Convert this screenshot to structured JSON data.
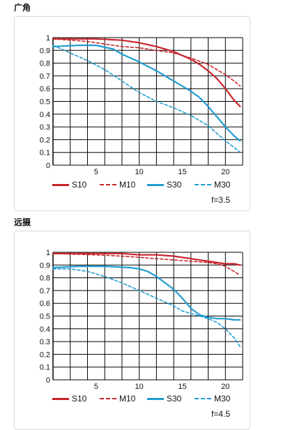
{
  "chart_data": [
    {
      "type": "line",
      "title": "广角",
      "annotation": "f=3.5",
      "xlim": [
        0,
        22
      ],
      "ylim": [
        0,
        1
      ],
      "x_ticks": [
        5,
        10,
        15,
        20
      ],
      "y_ticks": [
        0,
        0.1,
        0.2,
        0.3,
        0.4,
        0.5,
        0.6,
        0.7,
        0.8,
        0.9,
        1
      ],
      "y_tick_labels": [
        "0",
        "0.1",
        "0.2",
        "0.3",
        "0.4",
        "0.5",
        "0.6",
        "0.7",
        "0.8",
        "0.9",
        "1"
      ],
      "grid": true,
      "legend_position": "bottom",
      "series": [
        {
          "name": "S10",
          "color": "#c8242a",
          "dash": false,
          "x": [
            0,
            5,
            8,
            10,
            12,
            14,
            16,
            17,
            18,
            19,
            20,
            21,
            21.7
          ],
          "values": [
            0.99,
            0.99,
            0.98,
            0.96,
            0.93,
            0.89,
            0.83,
            0.79,
            0.74,
            0.68,
            0.6,
            0.51,
            0.46
          ]
        },
        {
          "name": "M10",
          "color": "#c8242a",
          "dash": true,
          "x": [
            0,
            4,
            8,
            10,
            12,
            14,
            16,
            18,
            19,
            20,
            21,
            21.7
          ],
          "values": [
            0.99,
            0.97,
            0.93,
            0.92,
            0.9,
            0.88,
            0.84,
            0.79,
            0.75,
            0.71,
            0.66,
            0.62
          ]
        },
        {
          "name": "S30",
          "color": "#1f9cd0",
          "dash": false,
          "x": [
            0,
            3,
            5,
            7,
            8,
            10,
            12,
            14,
            16,
            17,
            18,
            19,
            20,
            21,
            21.7
          ],
          "values": [
            0.93,
            0.94,
            0.94,
            0.91,
            0.87,
            0.81,
            0.74,
            0.66,
            0.58,
            0.53,
            0.46,
            0.38,
            0.3,
            0.23,
            0.19
          ]
        },
        {
          "name": "M30",
          "color": "#1f9cd0",
          "dash": true,
          "x": [
            0,
            2,
            4,
            6,
            8,
            10,
            12,
            14,
            16,
            18,
            19,
            20,
            21,
            21.7
          ],
          "values": [
            0.94,
            0.88,
            0.82,
            0.75,
            0.66,
            0.57,
            0.5,
            0.45,
            0.39,
            0.31,
            0.25,
            0.19,
            0.14,
            0.1
          ]
        }
      ]
    },
    {
      "type": "line",
      "title": "远摄",
      "annotation": "f=4.5",
      "xlim": [
        0,
        22
      ],
      "ylim": [
        0,
        1
      ],
      "x_ticks": [
        5,
        10,
        15,
        20
      ],
      "y_ticks": [
        0,
        0.1,
        0.2,
        0.3,
        0.4,
        0.5,
        0.6,
        0.7,
        0.8,
        0.9,
        1
      ],
      "y_tick_labels": [
        "0",
        "0.1",
        "0.2",
        "0.3",
        "0.4",
        "0.5",
        "0.6",
        "0.7",
        "0.8",
        "0.9",
        "1"
      ],
      "grid": true,
      "legend_position": "bottom",
      "series": [
        {
          "name": "S10",
          "color": "#c8242a",
          "dash": false,
          "x": [
            0,
            5,
            8,
            10,
            12,
            14,
            16,
            18,
            19,
            20,
            21,
            21.7
          ],
          "values": [
            0.99,
            0.99,
            0.99,
            0.98,
            0.98,
            0.97,
            0.95,
            0.93,
            0.92,
            0.91,
            0.91,
            0.9
          ]
        },
        {
          "name": "M10",
          "color": "#c8242a",
          "dash": true,
          "x": [
            0,
            5,
            8,
            10,
            12,
            14,
            16,
            18,
            19,
            20,
            21,
            21.7
          ],
          "values": [
            0.99,
            0.98,
            0.97,
            0.96,
            0.95,
            0.94,
            0.93,
            0.92,
            0.91,
            0.89,
            0.85,
            0.82
          ]
        },
        {
          "name": "S30",
          "color": "#1f9cd0",
          "dash": false,
          "x": [
            0,
            3,
            6,
            9,
            10,
            11,
            12,
            13,
            14,
            15,
            16,
            17,
            18,
            19,
            20,
            21,
            21.7
          ],
          "values": [
            0.88,
            0.89,
            0.89,
            0.88,
            0.87,
            0.85,
            0.81,
            0.76,
            0.71,
            0.64,
            0.56,
            0.51,
            0.49,
            0.48,
            0.48,
            0.47,
            0.47
          ]
        },
        {
          "name": "M30",
          "color": "#1f9cd0",
          "dash": true,
          "x": [
            0,
            2,
            4,
            6,
            8,
            10,
            12,
            14,
            15,
            16,
            17,
            18,
            19,
            20,
            21,
            21.7
          ],
          "values": [
            0.87,
            0.87,
            0.85,
            0.81,
            0.76,
            0.7,
            0.64,
            0.58,
            0.54,
            0.52,
            0.5,
            0.48,
            0.45,
            0.4,
            0.33,
            0.26
          ]
        }
      ]
    }
  ]
}
